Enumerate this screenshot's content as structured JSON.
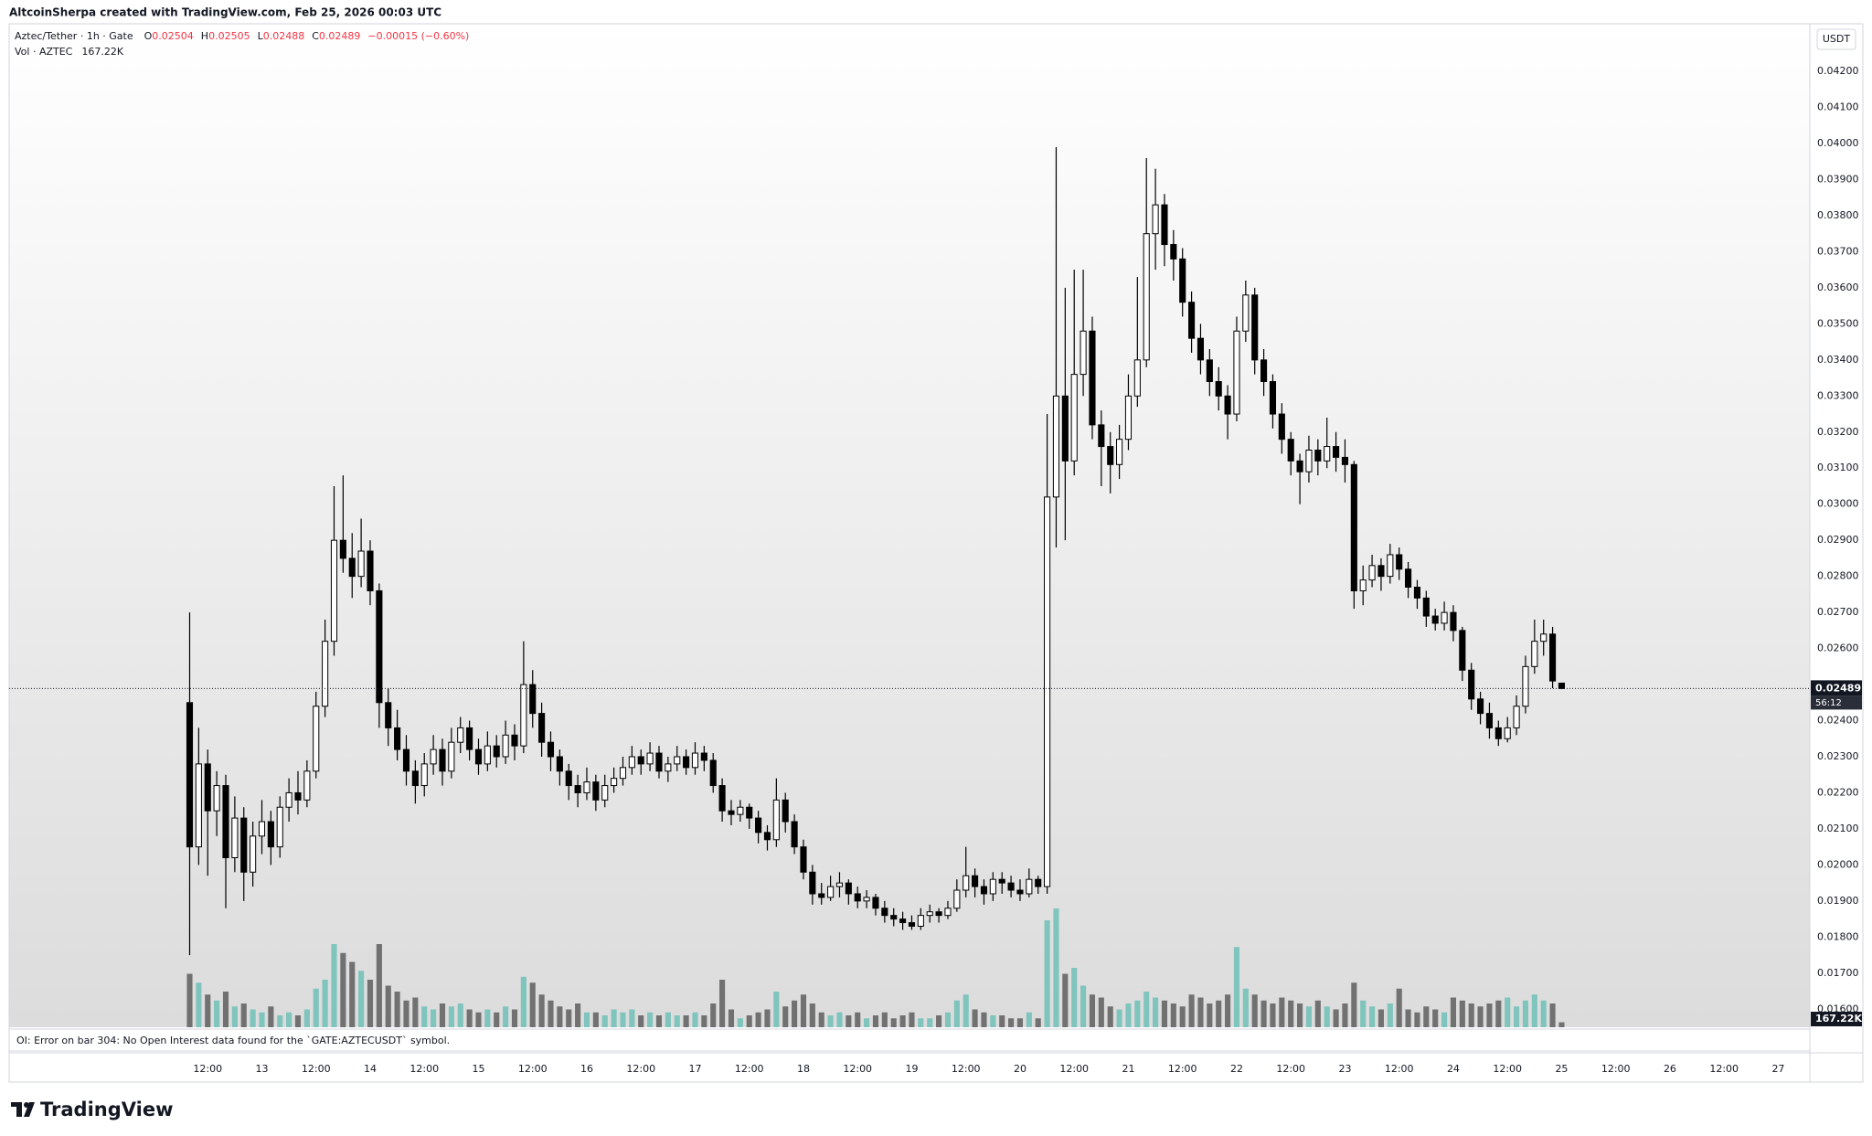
{
  "header": {
    "credit": "AltcoinSherpa created with TradingView.com, Feb 25, 2026 00:03 UTC"
  },
  "chart_data": {
    "type": "candlestick",
    "title": "Aztec/Tether · 1h · Gate",
    "ohlc_legend": [
      {
        "key": "O",
        "value": "0.02504"
      },
      {
        "key": "H",
        "value": "0.02505"
      },
      {
        "key": "L",
        "value": "0.02488"
      },
      {
        "key": "C",
        "value": "0.02489"
      }
    ],
    "change": "−0.00015 (−0.60%)",
    "volume_title": "Vol · AZTEC",
    "volume_label": "167.22K",
    "currency": "USDT",
    "last_price_label": "0.02489",
    "countdown": "56:12",
    "candle_up_color": "#ffffff",
    "candle_down_color": "#000000",
    "candle_border_color": "#000000",
    "volume_up_color": "#6fbfb7",
    "volume_down_color": "#5e5e5e",
    "legend_value_color": "#f23645",
    "candles": [
      [
        0.0245,
        0.027,
        0.0175,
        0.0205
      ],
      [
        0.0205,
        0.0238,
        0.02,
        0.0228
      ],
      [
        0.0228,
        0.0232,
        0.0197,
        0.0215
      ],
      [
        0.0215,
        0.0226,
        0.0208,
        0.0222
      ],
      [
        0.0222,
        0.0225,
        0.0188,
        0.0202
      ],
      [
        0.0202,
        0.0219,
        0.0198,
        0.0213
      ],
      [
        0.0213,
        0.0216,
        0.019,
        0.0198
      ],
      [
        0.0198,
        0.0212,
        0.0194,
        0.0208
      ],
      [
        0.0208,
        0.0218,
        0.0203,
        0.0212
      ],
      [
        0.0212,
        0.0215,
        0.02,
        0.0205
      ],
      [
        0.0205,
        0.0219,
        0.0202,
        0.0216
      ],
      [
        0.0216,
        0.0224,
        0.0212,
        0.022
      ],
      [
        0.022,
        0.0226,
        0.0214,
        0.0218
      ],
      [
        0.0218,
        0.0229,
        0.0216,
        0.0226
      ],
      [
        0.0226,
        0.0248,
        0.0224,
        0.0244
      ],
      [
        0.0244,
        0.0268,
        0.0241,
        0.0262
      ],
      [
        0.0262,
        0.0305,
        0.0258,
        0.029
      ],
      [
        0.029,
        0.0308,
        0.0281,
        0.0285
      ],
      [
        0.0285,
        0.0292,
        0.0274,
        0.028
      ],
      [
        0.028,
        0.0296,
        0.0277,
        0.0287
      ],
      [
        0.0287,
        0.029,
        0.0272,
        0.0276
      ],
      [
        0.0276,
        0.0278,
        0.0238,
        0.0245
      ],
      [
        0.0245,
        0.0249,
        0.0233,
        0.0238
      ],
      [
        0.0238,
        0.0243,
        0.0229,
        0.0232
      ],
      [
        0.0232,
        0.0236,
        0.0222,
        0.0226
      ],
      [
        0.0226,
        0.0229,
        0.0217,
        0.0222
      ],
      [
        0.0222,
        0.0231,
        0.0219,
        0.0228
      ],
      [
        0.0228,
        0.0236,
        0.0225,
        0.0232
      ],
      [
        0.0232,
        0.0235,
        0.0222,
        0.0226
      ],
      [
        0.0226,
        0.0238,
        0.0224,
        0.0234
      ],
      [
        0.0234,
        0.0241,
        0.0231,
        0.0238
      ],
      [
        0.0238,
        0.024,
        0.0229,
        0.0232
      ],
      [
        0.0232,
        0.0235,
        0.0225,
        0.0228
      ],
      [
        0.0228,
        0.0237,
        0.0226,
        0.0233
      ],
      [
        0.0233,
        0.0236,
        0.0227,
        0.023
      ],
      [
        0.023,
        0.024,
        0.0228,
        0.0236
      ],
      [
        0.0236,
        0.0239,
        0.0229,
        0.0233
      ],
      [
        0.0233,
        0.0262,
        0.0231,
        0.025
      ],
      [
        0.025,
        0.0254,
        0.0238,
        0.0242
      ],
      [
        0.0242,
        0.0245,
        0.023,
        0.0234
      ],
      [
        0.0234,
        0.0237,
        0.0226,
        0.023
      ],
      [
        0.023,
        0.0232,
        0.0222,
        0.0226
      ],
      [
        0.0226,
        0.0228,
        0.0218,
        0.0222
      ],
      [
        0.0222,
        0.0225,
        0.0216,
        0.022
      ],
      [
        0.022,
        0.0227,
        0.0218,
        0.0223
      ],
      [
        0.0223,
        0.0225,
        0.0215,
        0.0218
      ],
      [
        0.0218,
        0.0225,
        0.0216,
        0.0222
      ],
      [
        0.0222,
        0.0227,
        0.022,
        0.0224
      ],
      [
        0.0224,
        0.023,
        0.0222,
        0.0227
      ],
      [
        0.0227,
        0.0233,
        0.0225,
        0.023
      ],
      [
        0.023,
        0.0232,
        0.0225,
        0.0228
      ],
      [
        0.0228,
        0.0234,
        0.0226,
        0.0231
      ],
      [
        0.0231,
        0.0233,
        0.0224,
        0.0226
      ],
      [
        0.0226,
        0.023,
        0.0223,
        0.0228
      ],
      [
        0.0228,
        0.0233,
        0.0226,
        0.023
      ],
      [
        0.023,
        0.0232,
        0.0225,
        0.0227
      ],
      [
        0.0227,
        0.0234,
        0.0225,
        0.0231
      ],
      [
        0.0231,
        0.0233,
        0.0226,
        0.0229
      ],
      [
        0.0229,
        0.0231,
        0.022,
        0.0222
      ],
      [
        0.0222,
        0.0224,
        0.0212,
        0.0215
      ],
      [
        0.0215,
        0.0218,
        0.0211,
        0.0214
      ],
      [
        0.0214,
        0.0218,
        0.0212,
        0.0216
      ],
      [
        0.0216,
        0.0217,
        0.021,
        0.0213
      ],
      [
        0.0213,
        0.0215,
        0.0206,
        0.0209
      ],
      [
        0.0209,
        0.0211,
        0.0204,
        0.0207
      ],
      [
        0.0207,
        0.0224,
        0.0205,
        0.0218
      ],
      [
        0.0218,
        0.022,
        0.0209,
        0.0212
      ],
      [
        0.0212,
        0.0214,
        0.0203,
        0.0205
      ],
      [
        0.0205,
        0.0207,
        0.0196,
        0.0198
      ],
      [
        0.0198,
        0.02,
        0.0189,
        0.0192
      ],
      [
        0.0192,
        0.0195,
        0.0189,
        0.0191
      ],
      [
        0.0191,
        0.0197,
        0.019,
        0.0194
      ],
      [
        0.0194,
        0.0198,
        0.0191,
        0.0195
      ],
      [
        0.0195,
        0.0196,
        0.0189,
        0.0192
      ],
      [
        0.0192,
        0.0194,
        0.0188,
        0.019
      ],
      [
        0.019,
        0.0193,
        0.0188,
        0.0191
      ],
      [
        0.0191,
        0.0192,
        0.0186,
        0.0188
      ],
      [
        0.0188,
        0.019,
        0.0184,
        0.0186
      ],
      [
        0.0186,
        0.0188,
        0.0183,
        0.0185
      ],
      [
        0.0185,
        0.0187,
        0.0182,
        0.0184
      ],
      [
        0.0184,
        0.0186,
        0.0182,
        0.0183
      ],
      [
        0.0183,
        0.0188,
        0.0182,
        0.0186
      ],
      [
        0.0186,
        0.0189,
        0.0184,
        0.0187
      ],
      [
        0.0187,
        0.0188,
        0.0184,
        0.0186
      ],
      [
        0.0186,
        0.019,
        0.0185,
        0.0188
      ],
      [
        0.0188,
        0.0196,
        0.0187,
        0.0193
      ],
      [
        0.0193,
        0.0205,
        0.0191,
        0.0197
      ],
      [
        0.0197,
        0.0199,
        0.0191,
        0.0194
      ],
      [
        0.0194,
        0.0196,
        0.0189,
        0.0192
      ],
      [
        0.0192,
        0.0198,
        0.019,
        0.0196
      ],
      [
        0.0196,
        0.0198,
        0.0192,
        0.0195
      ],
      [
        0.0195,
        0.0197,
        0.0191,
        0.0193
      ],
      [
        0.0193,
        0.0196,
        0.019,
        0.0192
      ],
      [
        0.0192,
        0.0199,
        0.0191,
        0.0196
      ],
      [
        0.0196,
        0.0197,
        0.0192,
        0.0194
      ],
      [
        0.0194,
        0.0325,
        0.0192,
        0.0302
      ],
      [
        0.0302,
        0.0399,
        0.0288,
        0.033
      ],
      [
        0.033,
        0.036,
        0.029,
        0.0312
      ],
      [
        0.0312,
        0.0365,
        0.0308,
        0.0336
      ],
      [
        0.0336,
        0.0365,
        0.033,
        0.0348
      ],
      [
        0.0348,
        0.0352,
        0.0318,
        0.0322
      ],
      [
        0.0322,
        0.0326,
        0.0305,
        0.0316
      ],
      [
        0.0316,
        0.032,
        0.0303,
        0.0311
      ],
      [
        0.0311,
        0.0322,
        0.0307,
        0.0318
      ],
      [
        0.0318,
        0.0336,
        0.0315,
        0.033
      ],
      [
        0.033,
        0.0363,
        0.0327,
        0.034
      ],
      [
        0.034,
        0.0396,
        0.0338,
        0.0375
      ],
      [
        0.0375,
        0.0393,
        0.0365,
        0.0383
      ],
      [
        0.0383,
        0.0386,
        0.0366,
        0.0372
      ],
      [
        0.0372,
        0.0376,
        0.0362,
        0.0368
      ],
      [
        0.0368,
        0.0371,
        0.0352,
        0.0356
      ],
      [
        0.0356,
        0.0359,
        0.0342,
        0.0346
      ],
      [
        0.0346,
        0.035,
        0.0336,
        0.034
      ],
      [
        0.034,
        0.0343,
        0.033,
        0.0334
      ],
      [
        0.0334,
        0.0338,
        0.0326,
        0.033
      ],
      [
        0.033,
        0.0333,
        0.0318,
        0.0325
      ],
      [
        0.0325,
        0.0352,
        0.0323,
        0.0348
      ],
      [
        0.0348,
        0.0362,
        0.0345,
        0.0358
      ],
      [
        0.0358,
        0.036,
        0.0336,
        0.034
      ],
      [
        0.034,
        0.0343,
        0.033,
        0.0334
      ],
      [
        0.0334,
        0.0336,
        0.0321,
        0.0325
      ],
      [
        0.0325,
        0.0328,
        0.0314,
        0.0318
      ],
      [
        0.0318,
        0.032,
        0.0308,
        0.0312
      ],
      [
        0.0312,
        0.0314,
        0.03,
        0.0309
      ],
      [
        0.0309,
        0.0319,
        0.0306,
        0.0315
      ],
      [
        0.0315,
        0.0318,
        0.0308,
        0.0312
      ],
      [
        0.0312,
        0.0324,
        0.031,
        0.0316
      ],
      [
        0.0316,
        0.032,
        0.0309,
        0.0313
      ],
      [
        0.0313,
        0.0318,
        0.0306,
        0.0311
      ],
      [
        0.0311,
        0.0312,
        0.0271,
        0.0276
      ],
      [
        0.0276,
        0.0283,
        0.0272,
        0.0279
      ],
      [
        0.0279,
        0.0286,
        0.0277,
        0.0283
      ],
      [
        0.0283,
        0.0285,
        0.0276,
        0.028
      ],
      [
        0.028,
        0.0289,
        0.0278,
        0.0286
      ],
      [
        0.0286,
        0.0288,
        0.0279,
        0.0282
      ],
      [
        0.0282,
        0.0284,
        0.0274,
        0.0277
      ],
      [
        0.0277,
        0.0279,
        0.0271,
        0.0274
      ],
      [
        0.0274,
        0.0276,
        0.0266,
        0.0269
      ],
      [
        0.0269,
        0.0271,
        0.0265,
        0.0267
      ],
      [
        0.0267,
        0.0273,
        0.0265,
        0.027
      ],
      [
        0.027,
        0.0272,
        0.0262,
        0.0265
      ],
      [
        0.0265,
        0.0266,
        0.0251,
        0.0254
      ],
      [
        0.0254,
        0.0256,
        0.0243,
        0.0246
      ],
      [
        0.0246,
        0.0248,
        0.0239,
        0.0242
      ],
      [
        0.0242,
        0.0245,
        0.0235,
        0.0238
      ],
      [
        0.0238,
        0.024,
        0.0233,
        0.0235
      ],
      [
        0.0235,
        0.0241,
        0.0234,
        0.0238
      ],
      [
        0.0238,
        0.0247,
        0.0236,
        0.0244
      ],
      [
        0.0244,
        0.0258,
        0.0242,
        0.0255
      ],
      [
        0.0255,
        0.0268,
        0.0253,
        0.0262
      ],
      [
        0.0262,
        0.0268,
        0.0258,
        0.0264
      ],
      [
        0.0264,
        0.0266,
        0.0249,
        0.0251
      ],
      [
        0.02504,
        0.02505,
        0.02488,
        0.02489
      ]
    ],
    "volume": [
      1800000,
      1500000,
      1100000,
      900000,
      1200000,
      700000,
      800000,
      600000,
      500000,
      700000,
      400000,
      500000,
      400000,
      600000,
      1300000,
      1600000,
      2800000,
      2500000,
      2200000,
      1900000,
      1600000,
      2800000,
      1400000,
      1200000,
      900000,
      1000000,
      700000,
      600000,
      800000,
      700000,
      800000,
      600000,
      500000,
      600000,
      500000,
      700000,
      600000,
      1700000,
      1500000,
      1100000,
      900000,
      700000,
      600000,
      800000,
      500000,
      500000,
      400000,
      600000,
      500000,
      600000,
      400000,
      500000,
      400000,
      500000,
      400000,
      400000,
      500000,
      400000,
      800000,
      1600000,
      600000,
      300000,
      400000,
      500000,
      600000,
      1200000,
      700000,
      900000,
      1100000,
      800000,
      500000,
      400000,
      500000,
      400000,
      500000,
      300000,
      400000,
      500000,
      300000,
      400000,
      500000,
      300000,
      300000,
      400000,
      500000,
      900000,
      1100000,
      600000,
      500000,
      400000,
      400000,
      300000,
      300000,
      500000,
      300000,
      3600000,
      4000000,
      1800000,
      2000000,
      1400000,
      1100000,
      1000000,
      700000,
      600000,
      800000,
      900000,
      1200000,
      1000000,
      900000,
      800000,
      700000,
      1100000,
      1000000,
      800000,
      900000,
      1100000,
      2700000,
      1300000,
      1100000,
      900000,
      800000,
      1000000,
      900000,
      800000,
      700000,
      900000,
      700000,
      600000,
      800000,
      1500000,
      900000,
      700000,
      600000,
      800000,
      1300000,
      600000,
      500000,
      700000,
      600000,
      500000,
      1000000,
      900000,
      800000,
      700000,
      800000,
      900000,
      1000000,
      700000,
      900000,
      1100000,
      900000,
      800000,
      167220
    ],
    "ylim": [
      0.0155,
      0.04332
    ],
    "yticks": [
      {
        "value": 0.016,
        "label": "0.01600"
      },
      {
        "value": 0.017,
        "label": "0.01700"
      },
      {
        "value": 0.018,
        "label": "0.01800"
      },
      {
        "value": 0.019,
        "label": "0.01900"
      },
      {
        "value": 0.02,
        "label": "0.02000"
      },
      {
        "value": 0.021,
        "label": "0.02100"
      },
      {
        "value": 0.022,
        "label": "0.02200"
      },
      {
        "value": 0.023,
        "label": "0.02300"
      },
      {
        "value": 0.024,
        "label": "0.02400"
      },
      {
        "value": 0.026,
        "label": "0.02600"
      },
      {
        "value": 0.027,
        "label": "0.02700"
      },
      {
        "value": 0.028,
        "label": "0.02800"
      },
      {
        "value": 0.029,
        "label": "0.02900"
      },
      {
        "value": 0.03,
        "label": "0.03000"
      },
      {
        "value": 0.031,
        "label": "0.03100"
      },
      {
        "value": 0.032,
        "label": "0.03200"
      },
      {
        "value": 0.033,
        "label": "0.03300"
      },
      {
        "value": 0.034,
        "label": "0.03400"
      },
      {
        "value": 0.035,
        "label": "0.03500"
      },
      {
        "value": 0.036,
        "label": "0.03600"
      },
      {
        "value": 0.037,
        "label": "0.03700"
      },
      {
        "value": 0.038,
        "label": "0.03800"
      },
      {
        "value": 0.039,
        "label": "0.03900"
      },
      {
        "value": 0.04,
        "label": "0.04000"
      },
      {
        "value": 0.041,
        "label": "0.04100"
      },
      {
        "value": 0.042,
        "label": "0.04200"
      }
    ],
    "xlim": [
      -20,
      179.5
    ],
    "xticks": [
      {
        "value": 2,
        "label": "12:00"
      },
      {
        "value": 8,
        "label": "13"
      },
      {
        "value": 14,
        "label": "12:00"
      },
      {
        "value": 20,
        "label": "14"
      },
      {
        "value": 26,
        "label": "12:00"
      },
      {
        "value": 32,
        "label": "15"
      },
      {
        "value": 38,
        "label": "12:00"
      },
      {
        "value": 44,
        "label": "16"
      },
      {
        "value": 50,
        "label": "12:00"
      },
      {
        "value": 56,
        "label": "17"
      },
      {
        "value": 62,
        "label": "12:00"
      },
      {
        "value": 68,
        "label": "18"
      },
      {
        "value": 74,
        "label": "12:00"
      },
      {
        "value": 80,
        "label": "19"
      },
      {
        "value": 86,
        "label": "12:00"
      },
      {
        "value": 92,
        "label": "20"
      },
      {
        "value": 98,
        "label": "12:00"
      },
      {
        "value": 104,
        "label": "21"
      },
      {
        "value": 110,
        "label": "12:00"
      },
      {
        "value": 116,
        "label": "22"
      },
      {
        "value": 122,
        "label": "12:00"
      },
      {
        "value": 128,
        "label": "23"
      },
      {
        "value": 134,
        "label": "12:00"
      },
      {
        "value": 140,
        "label": "24"
      },
      {
        "value": 146,
        "label": "12:00"
      },
      {
        "value": 152,
        "label": "25"
      },
      {
        "value": 158,
        "label": "12:00"
      },
      {
        "value": 164,
        "label": "26"
      },
      {
        "value": 170,
        "label": "12:00"
      },
      {
        "value": 176,
        "label": "27"
      }
    ]
  },
  "oi_error": "OI: Error on bar 304: No Open Interest data found for the `GATE:AZTECUSDT` symbol.",
  "footer": {
    "logo": "TradingView"
  }
}
